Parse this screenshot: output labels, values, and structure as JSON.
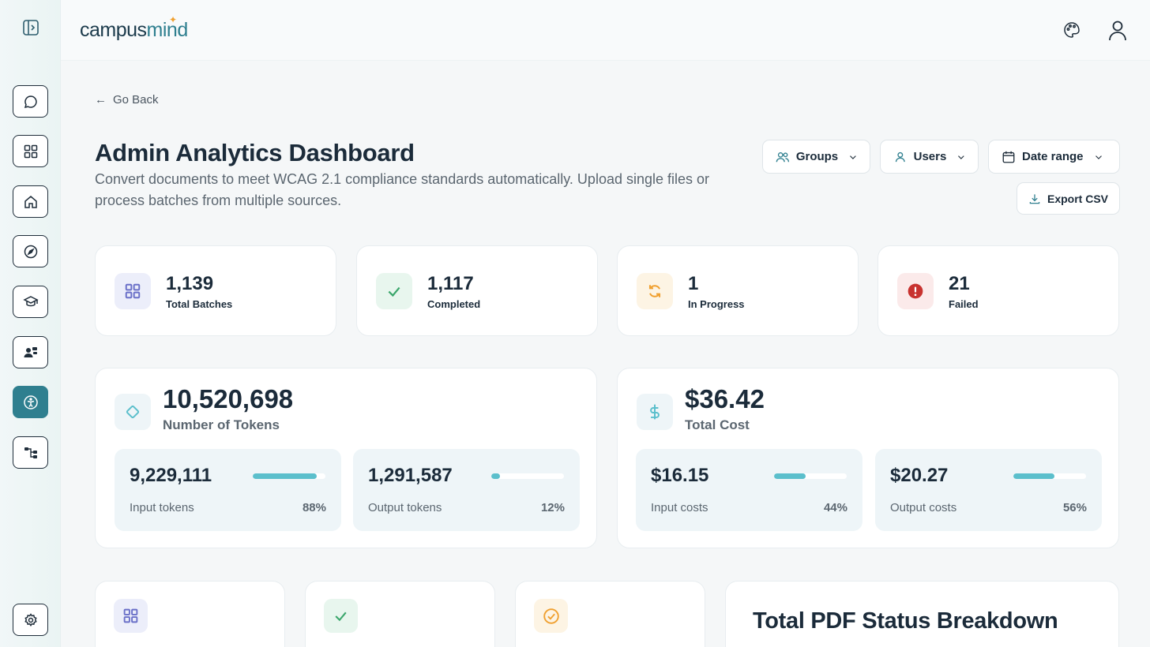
{
  "app": {
    "logo_prefix": "campus",
    "logo_suffix": "mind"
  },
  "nav": {
    "go_back": "Go Back"
  },
  "header": {
    "title": "Admin Analytics Dashboard",
    "description": "Convert documents to meet WCAG 2.1 compliance standards automatically. Upload single files or process batches from multiple sources."
  },
  "filters": {
    "groups": "Groups",
    "users": "Users",
    "date_range": "Date range",
    "export": "Export CSV"
  },
  "stats": [
    {
      "value": "1,139",
      "label": "Total Batches",
      "icon": "grid-icon"
    },
    {
      "value": "1,117",
      "label": "Completed",
      "icon": "check-icon"
    },
    {
      "value": "1",
      "label": "In Progress",
      "icon": "refresh-icon"
    },
    {
      "value": "21",
      "label": "Failed",
      "icon": "alert-icon"
    }
  ],
  "tokens": {
    "value": "10,520,698",
    "label": "Number of Tokens",
    "input": {
      "value": "9,229,111",
      "label": "Input tokens",
      "pct": "88%",
      "fraction": 0.88
    },
    "output": {
      "value": "1,291,587",
      "label": "Output tokens",
      "pct": "12%",
      "fraction": 0.12
    }
  },
  "cost": {
    "value": "$36.42",
    "label": "Total Cost",
    "input": {
      "value": "$16.15",
      "label": "Input costs",
      "pct": "44%",
      "fraction": 0.44
    },
    "output": {
      "value": "$20.27",
      "label": "Output costs",
      "pct": "56%",
      "fraction": 0.56
    }
  },
  "breakdown": {
    "title": "Total PDF Status Breakdown"
  },
  "colors": {
    "accent": "#2f7f8f",
    "bar": "#5bbfcc",
    "success": "#3aa66b",
    "warning": "#f0a030",
    "danger": "#c8322f",
    "primary_icon": "#6a70c8"
  }
}
